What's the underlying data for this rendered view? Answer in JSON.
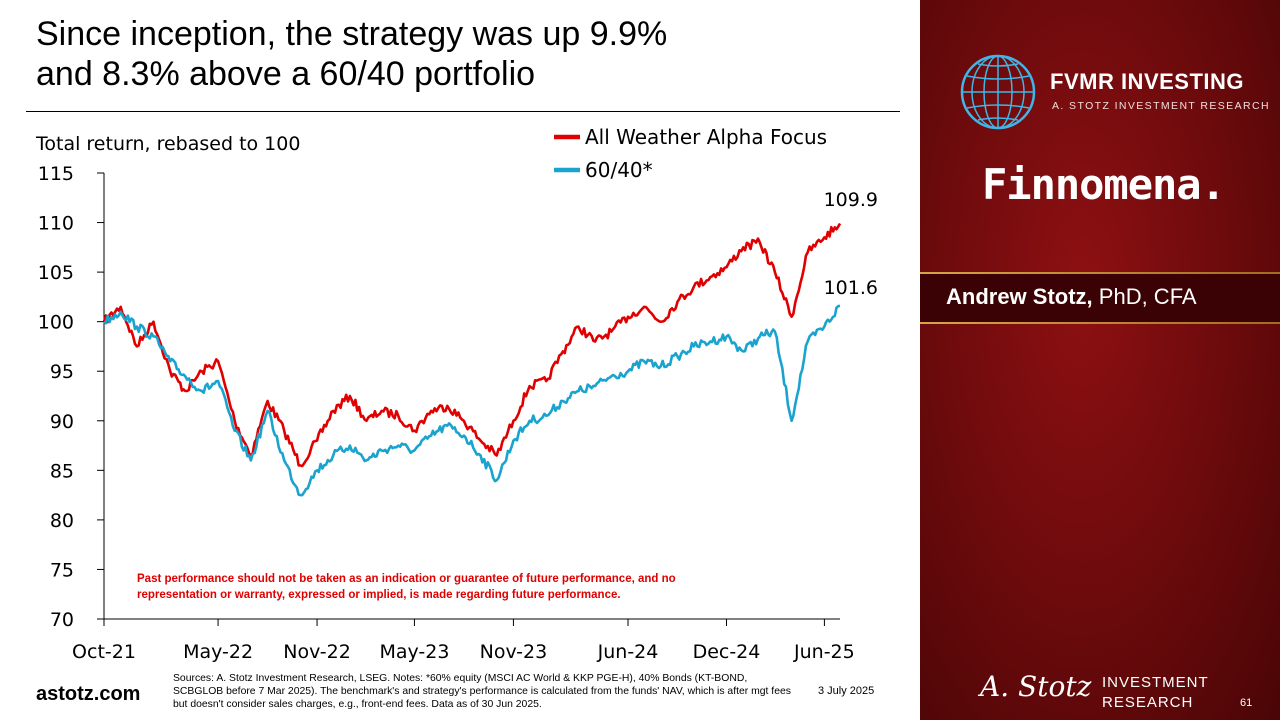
{
  "slide": {
    "title_line1": "Since inception, the strategy was up 9.9%",
    "title_line2": "and 8.3% above a 60/40 portfolio",
    "website": "astotz.com",
    "sources": "Sources: A. Stotz Investment Research, LSEG. Notes: *60% equity (MSCI AC World & KKP PGE-H), 40% Bonds (KT-BOND, SCBGLOB before 7 Mar 2025). The benchmark's and strategy's performance is calculated from the funds' NAV, which is after mgt fees but doesn't consider sales charges, e.g., front-end fees. Data as of 30 Jun 2025.",
    "date": "3 July 2025",
    "page_number": "61",
    "disclaimer": "Past performance should not be taken as an indication or guarantee of future performance, and no representation or warranty, expressed or implied, is made regarding future performance."
  },
  "sidebar": {
    "brand_name": "FVMR INVESTING",
    "brand_sub": "A. STOTZ INVESTMENT RESEARCH",
    "partner": "Finnomena.",
    "presenter_name": "Andrew Stotz,",
    "presenter_title": " PhD, CFA",
    "footer_signature": "A. Stotz",
    "footer_line1": "INVESTMENT",
    "footer_line2": "RESEARCH",
    "bg_color": "#7a0c0e",
    "band_color": "#d9a349"
  },
  "chart_data": {
    "type": "line",
    "ylabel": "Total return, rebased to 100",
    "ylim": [
      70,
      115
    ],
    "yticks": [
      70,
      75,
      80,
      85,
      90,
      95,
      100,
      105,
      110,
      115
    ],
    "xlim": [
      "2021-10-01",
      "2025-06-30"
    ],
    "xticks": [
      "2021-10-01",
      "2022-05-01",
      "2022-11-01",
      "2023-05-01",
      "2023-11-01",
      "2024-06-01",
      "2024-12-01",
      "2025-06-01"
    ],
    "xtick_labels": [
      "Oct-21",
      "May-22",
      "Nov-22",
      "May-23",
      "Nov-23",
      "Jun-24",
      "Dec-24",
      "Jun-25"
    ],
    "legend_position": "top-right",
    "grid": false,
    "series": [
      {
        "name": "All Weather Alpha Focus",
        "color": "#e00000",
        "end_label": "109.9",
        "x": [
          "2021-10-01",
          "2021-11-01",
          "2021-12-01",
          "2022-01-01",
          "2022-02-01",
          "2022-03-01",
          "2022-04-01",
          "2022-05-01",
          "2022-06-01",
          "2022-07-01",
          "2022-08-01",
          "2022-09-01",
          "2022-10-01",
          "2022-11-01",
          "2022-12-01",
          "2023-01-01",
          "2023-02-01",
          "2023-03-01",
          "2023-04-01",
          "2023-05-01",
          "2023-06-01",
          "2023-07-01",
          "2023-08-01",
          "2023-09-01",
          "2023-10-01",
          "2023-11-01",
          "2023-12-01",
          "2024-01-01",
          "2024-02-01",
          "2024-03-01",
          "2024-04-01",
          "2024-05-01",
          "2024-06-01",
          "2024-07-01",
          "2024-08-01",
          "2024-09-01",
          "2024-10-01",
          "2024-11-01",
          "2024-12-01",
          "2025-01-01",
          "2025-02-01",
          "2025-03-01",
          "2025-04-01",
          "2025-05-01",
          "2025-06-01",
          "2025-06-30"
        ],
        "values": [
          100,
          101.5,
          97.5,
          100,
          95,
          93,
          95,
          96,
          90,
          86.5,
          92,
          89,
          85.5,
          88,
          91,
          92.5,
          90,
          91,
          90.5,
          89,
          91,
          91.5,
          90,
          88,
          86.5,
          90,
          93.5,
          94,
          97,
          99.5,
          98,
          99,
          100.5,
          101.5,
          100,
          102,
          103.5,
          104.5,
          105.5,
          107.5,
          108,
          105,
          100.5,
          107,
          108.5,
          109.9
        ]
      },
      {
        "name": "60/40*",
        "color": "#1aa3cf",
        "end_label": "101.6",
        "x": [
          "2021-10-01",
          "2021-11-01",
          "2021-12-01",
          "2022-01-01",
          "2022-02-01",
          "2022-03-01",
          "2022-04-01",
          "2022-05-01",
          "2022-06-01",
          "2022-07-01",
          "2022-08-01",
          "2022-09-01",
          "2022-10-01",
          "2022-11-01",
          "2022-12-01",
          "2023-01-01",
          "2023-02-01",
          "2023-03-01",
          "2023-04-01",
          "2023-05-01",
          "2023-06-01",
          "2023-07-01",
          "2023-08-01",
          "2023-09-01",
          "2023-10-01",
          "2023-11-01",
          "2023-12-01",
          "2024-01-01",
          "2024-02-01",
          "2024-03-01",
          "2024-04-01",
          "2024-05-01",
          "2024-06-01",
          "2024-07-01",
          "2024-08-01",
          "2024-09-01",
          "2024-10-01",
          "2024-11-01",
          "2024-12-01",
          "2025-01-01",
          "2025-02-01",
          "2025-03-01",
          "2025-04-01",
          "2025-05-01",
          "2025-06-01",
          "2025-06-30"
        ],
        "values": [
          100,
          101,
          99.5,
          98.5,
          96,
          94.5,
          93,
          94,
          89,
          86,
          91,
          86,
          82.5,
          85,
          86.5,
          87.5,
          86,
          87,
          87.5,
          87,
          88.5,
          89.5,
          88.5,
          86.5,
          84,
          88,
          90,
          90.5,
          92,
          93,
          93.5,
          94.5,
          95,
          96,
          95.5,
          96.5,
          97.5,
          98,
          98.5,
          97,
          98.5,
          99,
          90,
          98,
          99.5,
          101.6
        ]
      }
    ]
  }
}
